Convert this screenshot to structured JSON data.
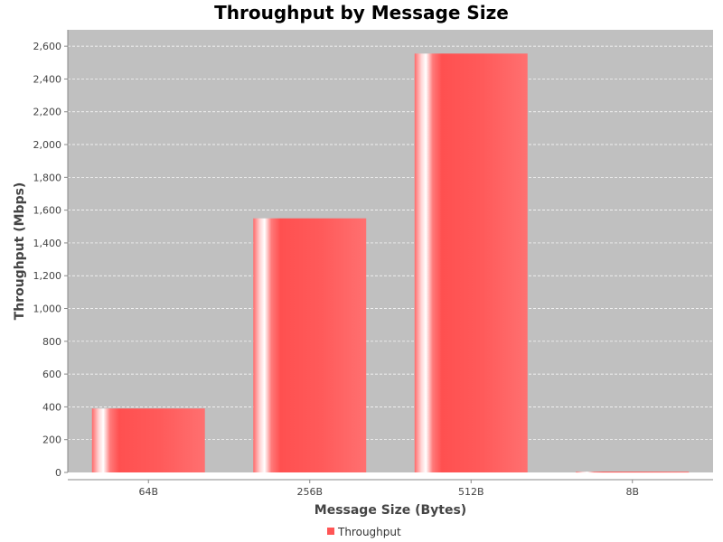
{
  "chart_data": {
    "type": "bar",
    "title": "Throughput by Message Size",
    "xlabel": "Message Size (Bytes)",
    "ylabel": "Throughput (Mbps)",
    "categories": [
      "64B",
      "256B",
      "512B",
      "8B"
    ],
    "series": [
      {
        "name": "Throughput",
        "values": [
          390,
          1550,
          2555,
          5
        ]
      }
    ],
    "ylim": [
      0,
      2700
    ],
    "yticks": [
      0,
      200,
      400,
      600,
      800,
      1000,
      1200,
      1400,
      1600,
      1800,
      2000,
      2200,
      2400,
      2600
    ],
    "ytick_labels": [
      "0",
      "200",
      "400",
      "600",
      "800",
      "1,000",
      "1,200",
      "1,400",
      "1,600",
      "1,800",
      "2,000",
      "2,200",
      "2,400",
      "2,600"
    ],
    "grid": true,
    "legend_position": "bottom",
    "colors": {
      "plot_background": "#c0c0c0",
      "bar": "#ff5555",
      "grid": "#ffffff"
    }
  }
}
